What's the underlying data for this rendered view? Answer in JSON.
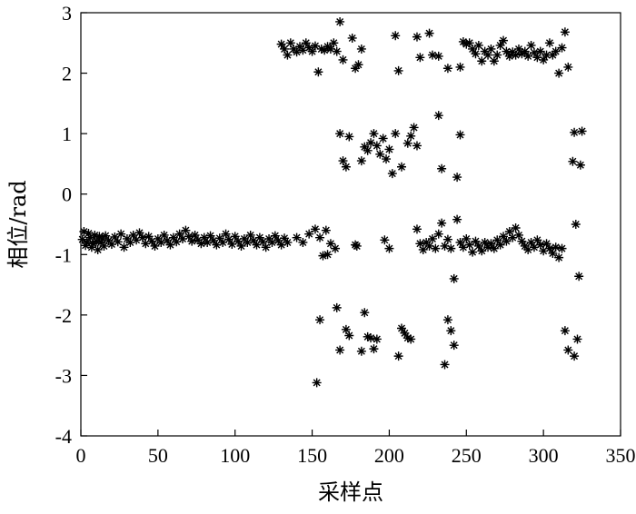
{
  "chart_data": {
    "type": "scatter",
    "title": "",
    "xlabel": "采样点",
    "ylabel": "相位/rad",
    "xlim": [
      0,
      350
    ],
    "ylim": [
      -4,
      3
    ],
    "x_ticks": [
      "0",
      "50",
      "100",
      "150",
      "200",
      "250",
      "300",
      "350"
    ],
    "y_ticks": [
      "3",
      "2",
      "1",
      "0",
      "-1",
      "-2",
      "-3",
      "-4"
    ],
    "grid": false,
    "legend": "none",
    "marker": "asterisk",
    "series": [
      {
        "values": [
          {
            "x": 1,
            "y": -0.75
          },
          {
            "x": 2,
            "y": -0.62
          },
          {
            "x": 3,
            "y": -0.85
          },
          {
            "x": 4,
            "y": -0.8
          },
          {
            "x": 5,
            "y": -0.65
          },
          {
            "x": 6,
            "y": -0.72
          },
          {
            "x": 7,
            "y": -0.88
          },
          {
            "x": 8,
            "y": -0.82
          },
          {
            "x": 9,
            "y": -0.68
          },
          {
            "x": 10,
            "y": -0.78
          },
          {
            "x": 11,
            "y": -0.92
          },
          {
            "x": 12,
            "y": -0.7
          },
          {
            "x": 13,
            "y": -0.8
          },
          {
            "x": 14,
            "y": -0.74
          },
          {
            "x": 15,
            "y": -0.86
          },
          {
            "x": 16,
            "y": -0.69
          },
          {
            "x": 18,
            "y": -0.77
          },
          {
            "x": 20,
            "y": -0.83
          },
          {
            "x": 22,
            "y": -0.71
          },
          {
            "x": 24,
            "y": -0.79
          },
          {
            "x": 26,
            "y": -0.66
          },
          {
            "x": 28,
            "y": -0.88
          },
          {
            "x": 30,
            "y": -0.74
          },
          {
            "x": 32,
            "y": -0.8
          },
          {
            "x": 34,
            "y": -0.68
          },
          {
            "x": 36,
            "y": -0.76
          },
          {
            "x": 38,
            "y": -0.64
          },
          {
            "x": 40,
            "y": -0.72
          },
          {
            "x": 42,
            "y": -0.82
          },
          {
            "x": 44,
            "y": -0.7
          },
          {
            "x": 46,
            "y": -0.78
          },
          {
            "x": 48,
            "y": -0.86
          },
          {
            "x": 50,
            "y": -0.74
          },
          {
            "x": 52,
            "y": -0.8
          },
          {
            "x": 54,
            "y": -0.68
          },
          {
            "x": 56,
            "y": -0.77
          },
          {
            "x": 58,
            "y": -0.84
          },
          {
            "x": 60,
            "y": -0.72
          },
          {
            "x": 62,
            "y": -0.79
          },
          {
            "x": 64,
            "y": -0.66
          },
          {
            "x": 66,
            "y": -0.74
          },
          {
            "x": 68,
            "y": -0.6
          },
          {
            "x": 70,
            "y": -0.7
          },
          {
            "x": 72,
            "y": -0.78
          },
          {
            "x": 74,
            "y": -0.68
          },
          {
            "x": 76,
            "y": -0.76
          },
          {
            "x": 78,
            "y": -0.82
          },
          {
            "x": 80,
            "y": -0.72
          },
          {
            "x": 82,
            "y": -0.8
          },
          {
            "x": 84,
            "y": -0.69
          },
          {
            "x": 86,
            "y": -0.77
          },
          {
            "x": 88,
            "y": -0.84
          },
          {
            "x": 90,
            "y": -0.73
          },
          {
            "x": 92,
            "y": -0.8
          },
          {
            "x": 94,
            "y": -0.66
          },
          {
            "x": 96,
            "y": -0.75
          },
          {
            "x": 98,
            "y": -0.83
          },
          {
            "x": 100,
            "y": -0.7
          },
          {
            "x": 102,
            "y": -0.78
          },
          {
            "x": 104,
            "y": -0.86
          },
          {
            "x": 106,
            "y": -0.74
          },
          {
            "x": 108,
            "y": -0.8
          },
          {
            "x": 110,
            "y": -0.68
          },
          {
            "x": 112,
            "y": -0.77
          },
          {
            "x": 114,
            "y": -0.84
          },
          {
            "x": 116,
            "y": -0.72
          },
          {
            "x": 118,
            "y": -0.79
          },
          {
            "x": 120,
            "y": -0.88
          },
          {
            "x": 122,
            "y": -0.74
          },
          {
            "x": 124,
            "y": -0.8
          },
          {
            "x": 126,
            "y": -0.69
          },
          {
            "x": 128,
            "y": -0.77
          },
          {
            "x": 130,
            "y": -0.84
          },
          {
            "x": 132,
            "y": -0.73
          },
          {
            "x": 134,
            "y": -0.8
          },
          {
            "x": 140,
            "y": -0.72
          },
          {
            "x": 144,
            "y": -0.8
          },
          {
            "x": 148,
            "y": -0.66
          },
          {
            "x": 152,
            "y": -0.58
          },
          {
            "x": 155,
            "y": -0.72
          },
          {
            "x": 157,
            "y": -1.02
          },
          {
            "x": 159,
            "y": -0.6
          },
          {
            "x": 160,
            "y": -1.0
          },
          {
            "x": 162,
            "y": -0.82
          },
          {
            "x": 165,
            "y": -0.9
          },
          {
            "x": 178,
            "y": -0.84
          },
          {
            "x": 179,
            "y": -0.86
          },
          {
            "x": 197,
            "y": -0.76
          },
          {
            "x": 200,
            "y": -0.9
          },
          {
            "x": 218,
            "y": -0.58
          },
          {
            "x": 220,
            "y": -0.82
          },
          {
            "x": 222,
            "y": -0.92
          },
          {
            "x": 224,
            "y": -0.8
          },
          {
            "x": 226,
            "y": -0.86
          },
          {
            "x": 228,
            "y": -0.74
          },
          {
            "x": 230,
            "y": -0.9
          },
          {
            "x": 232,
            "y": -0.66
          },
          {
            "x": 234,
            "y": -0.48
          },
          {
            "x": 236,
            "y": -0.86
          },
          {
            "x": 238,
            "y": -0.75
          },
          {
            "x": 240,
            "y": -0.9
          },
          {
            "x": 242,
            "y": -1.4
          },
          {
            "x": 244,
            "y": -0.42
          },
          {
            "x": 246,
            "y": -0.8
          },
          {
            "x": 248,
            "y": -0.88
          },
          {
            "x": 250,
            "y": -0.74
          },
          {
            "x": 252,
            "y": -0.84
          },
          {
            "x": 254,
            "y": -0.96
          },
          {
            "x": 256,
            "y": -0.78
          },
          {
            "x": 258,
            "y": -0.86
          },
          {
            "x": 260,
            "y": -0.94
          },
          {
            "x": 262,
            "y": -0.8
          },
          {
            "x": 264,
            "y": -0.88
          },
          {
            "x": 266,
            "y": -0.82
          },
          {
            "x": 268,
            "y": -0.9
          },
          {
            "x": 270,
            "y": -0.76
          },
          {
            "x": 272,
            "y": -0.84
          },
          {
            "x": 274,
            "y": -0.7
          },
          {
            "x": 276,
            "y": -0.78
          },
          {
            "x": 278,
            "y": -0.62
          },
          {
            "x": 280,
            "y": -0.72
          },
          {
            "x": 282,
            "y": -0.56
          },
          {
            "x": 284,
            "y": -0.68
          },
          {
            "x": 286,
            "y": -0.78
          },
          {
            "x": 288,
            "y": -0.86
          },
          {
            "x": 290,
            "y": -0.92
          },
          {
            "x": 292,
            "y": -0.8
          },
          {
            "x": 294,
            "y": -0.88
          },
          {
            "x": 296,
            "y": -0.76
          },
          {
            "x": 298,
            "y": -0.84
          },
          {
            "x": 300,
            "y": -0.94
          },
          {
            "x": 302,
            "y": -0.82
          },
          {
            "x": 304,
            "y": -0.9
          },
          {
            "x": 306,
            "y": -0.98
          },
          {
            "x": 308,
            "y": -0.88
          },
          {
            "x": 310,
            "y": -1.05
          },
          {
            "x": 312,
            "y": -0.9
          },
          {
            "x": 321,
            "y": -0.5
          },
          {
            "x": 130,
            "y": 2.48
          },
          {
            "x": 132,
            "y": 2.4
          },
          {
            "x": 134,
            "y": 2.3
          },
          {
            "x": 136,
            "y": 2.5
          },
          {
            "x": 138,
            "y": 2.4
          },
          {
            "x": 140,
            "y": 2.35
          },
          {
            "x": 142,
            "y": 2.44
          },
          {
            "x": 144,
            "y": 2.38
          },
          {
            "x": 146,
            "y": 2.5
          },
          {
            "x": 148,
            "y": 2.42
          },
          {
            "x": 150,
            "y": 2.36
          },
          {
            "x": 152,
            "y": 2.45
          },
          {
            "x": 154,
            "y": 2.02
          },
          {
            "x": 156,
            "y": 2.4
          },
          {
            "x": 158,
            "y": 2.38
          },
          {
            "x": 160,
            "y": 2.44
          },
          {
            "x": 162,
            "y": 2.4
          },
          {
            "x": 164,
            "y": 2.5
          },
          {
            "x": 166,
            "y": 2.36
          },
          {
            "x": 168,
            "y": 2.85
          },
          {
            "x": 170,
            "y": 2.22
          },
          {
            "x": 176,
            "y": 2.58
          },
          {
            "x": 178,
            "y": 2.08
          },
          {
            "x": 180,
            "y": 2.14
          },
          {
            "x": 182,
            "y": 2.4
          },
          {
            "x": 204,
            "y": 2.62
          },
          {
            "x": 206,
            "y": 2.04
          },
          {
            "x": 218,
            "y": 2.6
          },
          {
            "x": 220,
            "y": 2.26
          },
          {
            "x": 226,
            "y": 2.66
          },
          {
            "x": 228,
            "y": 2.3
          },
          {
            "x": 232,
            "y": 2.28
          },
          {
            "x": 238,
            "y": 2.08
          },
          {
            "x": 246,
            "y": 2.1
          },
          {
            "x": 248,
            "y": 2.52
          },
          {
            "x": 250,
            "y": 2.48
          },
          {
            "x": 252,
            "y": 2.5
          },
          {
            "x": 254,
            "y": 2.4
          },
          {
            "x": 256,
            "y": 2.32
          },
          {
            "x": 258,
            "y": 2.46
          },
          {
            "x": 260,
            "y": 2.2
          },
          {
            "x": 262,
            "y": 2.36
          },
          {
            "x": 264,
            "y": 2.3
          },
          {
            "x": 266,
            "y": 2.4
          },
          {
            "x": 268,
            "y": 2.2
          },
          {
            "x": 270,
            "y": 2.3
          },
          {
            "x": 272,
            "y": 2.46
          },
          {
            "x": 274,
            "y": 2.54
          },
          {
            "x": 276,
            "y": 2.36
          },
          {
            "x": 278,
            "y": 2.28
          },
          {
            "x": 280,
            "y": 2.35
          },
          {
            "x": 282,
            "y": 2.3
          },
          {
            "x": 284,
            "y": 2.4
          },
          {
            "x": 286,
            "y": 2.32
          },
          {
            "x": 288,
            "y": 2.36
          },
          {
            "x": 290,
            "y": 2.28
          },
          {
            "x": 292,
            "y": 2.46
          },
          {
            "x": 294,
            "y": 2.34
          },
          {
            "x": 296,
            "y": 2.26
          },
          {
            "x": 298,
            "y": 2.36
          },
          {
            "x": 300,
            "y": 2.22
          },
          {
            "x": 302,
            "y": 2.3
          },
          {
            "x": 304,
            "y": 2.5
          },
          {
            "x": 306,
            "y": 2.3
          },
          {
            "x": 308,
            "y": 2.36
          },
          {
            "x": 310,
            "y": 2.0
          },
          {
            "x": 312,
            "y": 2.42
          },
          {
            "x": 314,
            "y": 2.68
          },
          {
            "x": 316,
            "y": 2.1
          },
          {
            "x": 168,
            "y": 1.0
          },
          {
            "x": 170,
            "y": 0.55
          },
          {
            "x": 172,
            "y": 0.45
          },
          {
            "x": 174,
            "y": 0.95
          },
          {
            "x": 182,
            "y": 0.55
          },
          {
            "x": 184,
            "y": 0.78
          },
          {
            "x": 186,
            "y": 0.72
          },
          {
            "x": 188,
            "y": 0.85
          },
          {
            "x": 190,
            "y": 1.0
          },
          {
            "x": 192,
            "y": 0.8
          },
          {
            "x": 194,
            "y": 0.66
          },
          {
            "x": 196,
            "y": 0.92
          },
          {
            "x": 198,
            "y": 0.58
          },
          {
            "x": 200,
            "y": 0.74
          },
          {
            "x": 202,
            "y": 0.34
          },
          {
            "x": 204,
            "y": 1.0
          },
          {
            "x": 208,
            "y": 0.45
          },
          {
            "x": 212,
            "y": 0.84
          },
          {
            "x": 214,
            "y": 0.96
          },
          {
            "x": 216,
            "y": 1.1
          },
          {
            "x": 218,
            "y": 0.8
          },
          {
            "x": 232,
            "y": 1.3
          },
          {
            "x": 234,
            "y": 0.42
          },
          {
            "x": 244,
            "y": 0.28
          },
          {
            "x": 246,
            "y": 0.98
          },
          {
            "x": 319,
            "y": 0.54
          },
          {
            "x": 320,
            "y": 1.02
          },
          {
            "x": 324,
            "y": 0.48
          },
          {
            "x": 325,
            "y": 1.04
          },
          {
            "x": 153,
            "y": -3.12
          },
          {
            "x": 155,
            "y": -2.08
          },
          {
            "x": 166,
            "y": -1.88
          },
          {
            "x": 168,
            "y": -2.58
          },
          {
            "x": 172,
            "y": -2.24
          },
          {
            "x": 174,
            "y": -2.34
          },
          {
            "x": 182,
            "y": -2.6
          },
          {
            "x": 184,
            "y": -1.96
          },
          {
            "x": 186,
            "y": -2.36
          },
          {
            "x": 188,
            "y": -2.38
          },
          {
            "x": 190,
            "y": -2.56
          },
          {
            "x": 192,
            "y": -2.4
          },
          {
            "x": 206,
            "y": -2.68
          },
          {
            "x": 208,
            "y": -2.22
          },
          {
            "x": 210,
            "y": -2.3
          },
          {
            "x": 212,
            "y": -2.38
          },
          {
            "x": 214,
            "y": -2.4
          },
          {
            "x": 236,
            "y": -2.82
          },
          {
            "x": 238,
            "y": -2.08
          },
          {
            "x": 240,
            "y": -2.26
          },
          {
            "x": 242,
            "y": -2.5
          },
          {
            "x": 314,
            "y": -2.26
          },
          {
            "x": 316,
            "y": -2.58
          },
          {
            "x": 320,
            "y": -2.68
          },
          {
            "x": 322,
            "y": -2.4
          },
          {
            "x": 323,
            "y": -1.36
          }
        ]
      }
    ]
  }
}
